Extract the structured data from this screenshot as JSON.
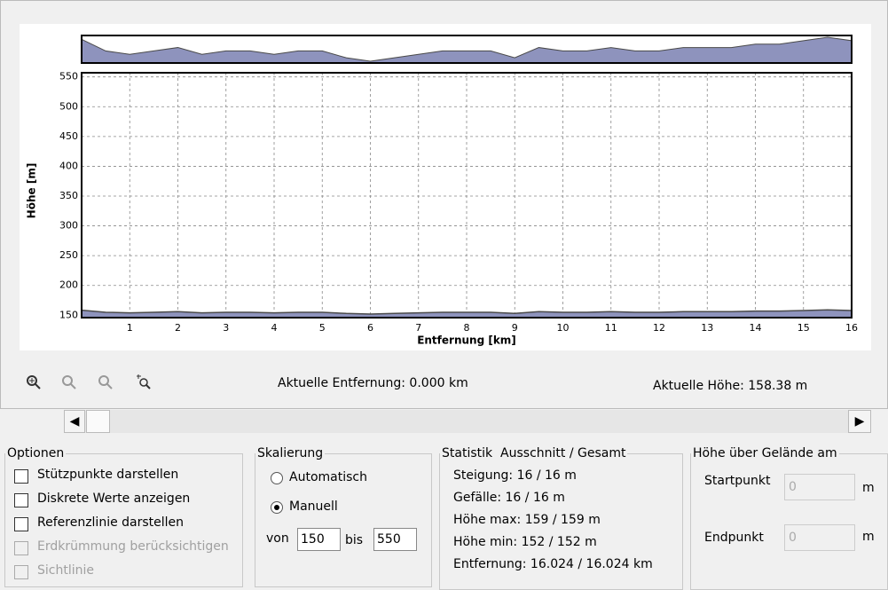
{
  "chart_data": {
    "type": "area",
    "x": [
      0,
      0.5,
      1,
      1.5,
      2,
      2.5,
      3,
      3.5,
      4,
      4.5,
      5,
      5.5,
      6,
      6.5,
      7,
      7.5,
      8,
      8.5,
      9,
      9.5,
      10,
      10.5,
      11,
      11.5,
      12,
      12.5,
      13,
      13.5,
      14,
      14.5,
      15,
      15.5,
      16
    ],
    "values": [
      158.4,
      155,
      154,
      155,
      156,
      154,
      155,
      155,
      154,
      155,
      155,
      153,
      152,
      153,
      154,
      155,
      155,
      155,
      153,
      156,
      155,
      155,
      156,
      155,
      155,
      156,
      156,
      156,
      157,
      157,
      158,
      159,
      158
    ],
    "color": "#8e93bd",
    "line_color": "#4a4a4a",
    "xlim": [
      0,
      16
    ],
    "ylim": [
      146,
      557
    ],
    "xticks": [
      1,
      2,
      3,
      4,
      5,
      6,
      7,
      8,
      9,
      10,
      11,
      12,
      13,
      14,
      15,
      16
    ],
    "yticks": [
      150,
      200,
      250,
      300,
      350,
      400,
      450,
      500,
      550
    ],
    "grid": true,
    "xlabel": "Entfernung [km]",
    "ylabel": "Höhe [m]"
  },
  "status": {
    "distance": "Aktuelle Entfernung: 0.000 km",
    "height": "Aktuelle Höhe: 158.38 m"
  },
  "options": {
    "title": "Optionen",
    "items": [
      {
        "label": "Stützpunkte darstellen",
        "enabled": true
      },
      {
        "label": "Diskrete Werte anzeigen",
        "enabled": true
      },
      {
        "label": "Referenzlinie darstellen",
        "enabled": true
      },
      {
        "label": "Erdkrümmung berücksichtigen",
        "enabled": false
      },
      {
        "label": "Sichtlinie",
        "enabled": false
      }
    ]
  },
  "scaling": {
    "title": "Skalierung",
    "automatic": "Automatisch",
    "manual": "Manuell",
    "manual_selected": true,
    "from_label": "von",
    "from": "150",
    "to_label": "bis",
    "to": "550"
  },
  "statistics": {
    "title": "Statistik",
    "subtitle": "Ausschnitt / Gesamt",
    "lines": [
      "Steigung: 16 / 16 m",
      "Gefälle: 16 / 16 m",
      "Höhe max: 159 / 159 m",
      "Höhe min: 152 / 152 m",
      "Entfernung: 16.024 / 16.024 km"
    ]
  },
  "ground": {
    "title": "Höhe über Gelände am",
    "start_label": "Startpunkt",
    "start": "0",
    "end_label": "Endpunkt",
    "end": "0",
    "unit": "m"
  }
}
